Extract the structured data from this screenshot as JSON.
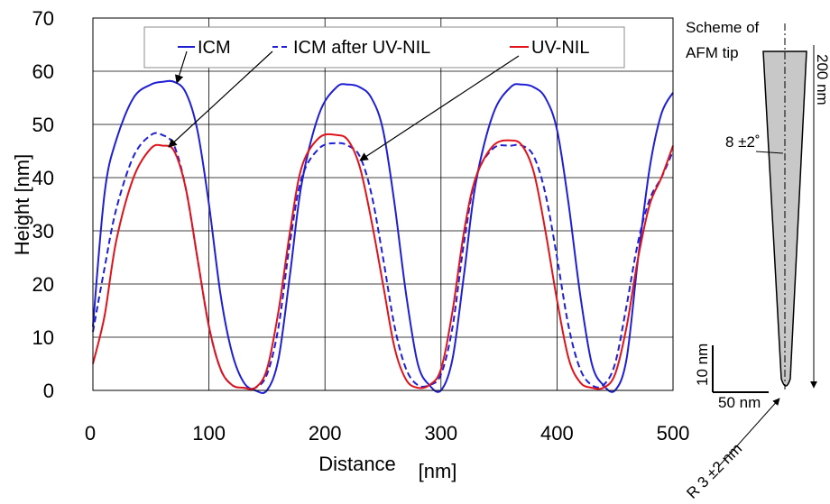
{
  "chart_data": {
    "type": "line",
    "title": "",
    "xlabel": "Distance",
    "xlabel_unit": "[nm]",
    "ylabel": "Height [nm]",
    "xlim": [
      0,
      500
    ],
    "ylim": [
      0,
      70
    ],
    "xticks": [
      "0",
      "100",
      "200",
      "300",
      "400",
      "500"
    ],
    "yticks": [
      "0",
      "10",
      "20",
      "30",
      "40",
      "50",
      "60",
      "70"
    ],
    "grid": true,
    "legend_position": "top",
    "series": [
      {
        "name": "ICM",
        "color": "#1f1fd6",
        "dash": "solid",
        "x": [
          0,
          10,
          20,
          35,
          50,
          60,
          70,
          80,
          90,
          100,
          110,
          120,
          130,
          140,
          150,
          160,
          170,
          180,
          195,
          210,
          220,
          230,
          240,
          250,
          260,
          270,
          280,
          290,
          300,
          310,
          320,
          330,
          345,
          360,
          370,
          380,
          390,
          400,
          410,
          420,
          430,
          440,
          450,
          460,
          470,
          480,
          490,
          500
        ],
        "y": [
          12,
          37,
          47,
          55,
          57.5,
          58,
          58,
          56,
          49,
          35,
          18,
          7,
          1.5,
          0,
          0,
          6,
          22,
          39,
          52,
          57,
          57.5,
          57,
          55,
          49,
          35,
          18,
          5,
          1,
          0,
          6,
          22,
          39,
          52,
          57,
          57.5,
          57,
          55,
          49,
          35,
          18,
          5,
          1,
          0,
          6,
          25,
          42,
          52,
          56
        ]
      },
      {
        "name": "ICM after UV-NIL",
        "color": "#1f1fd6",
        "dash": "dashed",
        "x": [
          0,
          10,
          20,
          35,
          50,
          60,
          70,
          80,
          90,
          100,
          110,
          120,
          130,
          140,
          150,
          160,
          170,
          180,
          195,
          210,
          220,
          230,
          240,
          250,
          260,
          270,
          280,
          290,
          300,
          310,
          320,
          330,
          345,
          360,
          370,
          380,
          390,
          400,
          410,
          420,
          430,
          440,
          450,
          460,
          470,
          480,
          490,
          500
        ],
        "y": [
          11,
          23,
          34,
          44,
          48,
          48,
          46,
          38,
          25,
          12,
          4,
          1,
          0.5,
          0.5,
          3,
          12,
          28,
          40,
          45.5,
          46.5,
          46,
          44,
          37,
          25,
          12,
          4,
          1,
          1,
          3,
          12,
          28,
          40,
          45.5,
          46,
          46,
          44,
          37,
          25,
          12,
          4,
          1,
          1,
          5,
          16,
          28,
          36,
          40,
          45
        ]
      },
      {
        "name": "UV-NIL",
        "color": "#e0131b",
        "dash": "solid",
        "x": [
          0,
          10,
          20,
          35,
          50,
          60,
          70,
          80,
          90,
          100,
          110,
          120,
          130,
          140,
          150,
          160,
          170,
          180,
          195,
          210,
          220,
          230,
          240,
          250,
          260,
          270,
          280,
          290,
          300,
          310,
          320,
          330,
          345,
          360,
          370,
          380,
          390,
          400,
          410,
          420,
          430,
          440,
          450,
          460,
          470,
          480,
          490,
          500
        ],
        "y": [
          5,
          14,
          28,
          40,
          45.5,
          46,
          45,
          38,
          25,
          12,
          4,
          1,
          0.5,
          0.5,
          4,
          15,
          30,
          42,
          47.5,
          48,
          47,
          42,
          32,
          20,
          8,
          2,
          0.5,
          1,
          4,
          15,
          30,
          40,
          46,
          47,
          46,
          41,
          30,
          17,
          6,
          1.5,
          0.5,
          0.5,
          3,
          12,
          25,
          35,
          40,
          46
        ]
      }
    ],
    "annotations": {
      "scheme_line1": "Scheme of",
      "scheme_line2": "AFM tip",
      "tip_length": "200 nm",
      "tip_angle": "8 ±2˚",
      "scale_vertical": "10 nm",
      "scale_horizontal": "50 nm",
      "tip_radius": "R 3 ±2 nm"
    }
  }
}
